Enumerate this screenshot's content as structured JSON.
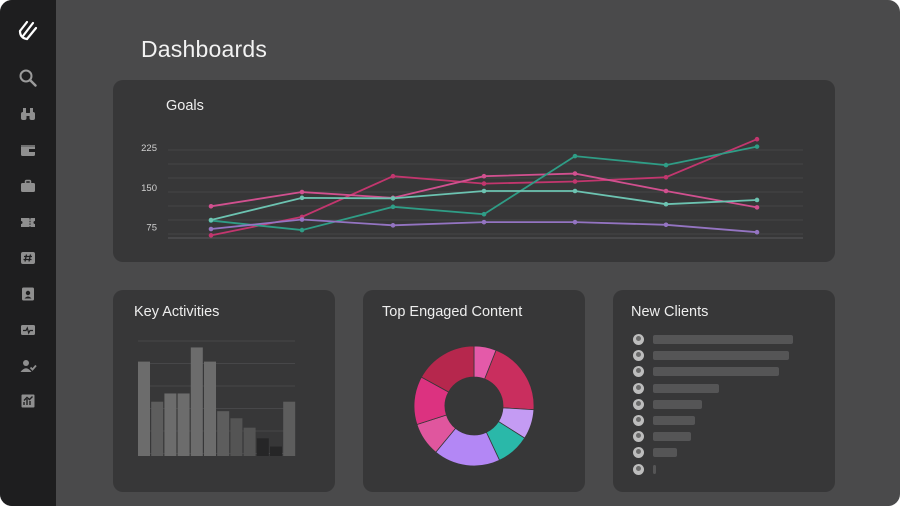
{
  "page": {
    "title": "Dashboards"
  },
  "sidebar": {
    "icons": [
      "search-icon",
      "binoculars-icon",
      "wallet-icon",
      "briefcase-icon",
      "ticket-icon",
      "hashtag-icon",
      "contact-card-icon",
      "pulse-icon",
      "users-icon",
      "report-icon"
    ]
  },
  "goals": {
    "title": "Goals",
    "chart_data": {
      "type": "line",
      "x": [
        1,
        2,
        3,
        4,
        5,
        6,
        7
      ],
      "yticks": [
        75,
        150,
        225
      ],
      "ylim": [
        55,
        250
      ],
      "grid": true,
      "series": [
        {
          "color": "#c2366e",
          "values": [
            60,
            95,
            172,
            158,
            162,
            170,
            242
          ]
        },
        {
          "color": "#d1508f",
          "values": [
            115,
            142,
            131,
            172,
            177,
            144,
            113
          ]
        },
        {
          "color": "#2f9d86",
          "values": [
            88,
            70,
            114,
            100,
            210,
            193,
            228
          ]
        },
        {
          "color": "#6cc3b1",
          "values": [
            89,
            131,
            130,
            144,
            144,
            119,
            127
          ]
        },
        {
          "color": "#9474c2",
          "values": [
            72,
            90,
            79,
            85,
            85,
            80,
            66
          ]
        }
      ]
    }
  },
  "activities": {
    "title": "Key Activities",
    "chart_data": {
      "type": "bar",
      "ylim": [
        0,
        10
      ],
      "values": [
        8.0,
        4.6,
        5.3,
        5.3,
        9.2,
        8.0,
        3.8,
        3.2,
        2.4,
        1.5,
        0.8,
        4.6
      ],
      "colors": [
        "#6c6c6c",
        "#5d5d5d",
        "#6c6c6c",
        "#6c6c6c",
        "#6c6c6c",
        "#6c6c6c",
        "#5d5d5d",
        "#545454",
        "#545454",
        "#262627",
        "#262627",
        "#5d5d5d"
      ]
    }
  },
  "engaged": {
    "title": "Top Engaged Content",
    "chart_data": {
      "type": "pie",
      "values": [
        6,
        20,
        8,
        9,
        18,
        9,
        13,
        17
      ],
      "colors": [
        "#e45aa9",
        "#c92e5e",
        "#c49bf3",
        "#2ab8a9",
        "#b387f5",
        "#e0569e",
        "#dc3280",
        "#b6274d"
      ]
    }
  },
  "clients": {
    "title": "New Clients",
    "chart_data": {
      "type": "bar",
      "orientation": "horizontal",
      "values": [
        140,
        136,
        126,
        66,
        49,
        42,
        38,
        24,
        3
      ],
      "color": "#555556"
    }
  }
}
